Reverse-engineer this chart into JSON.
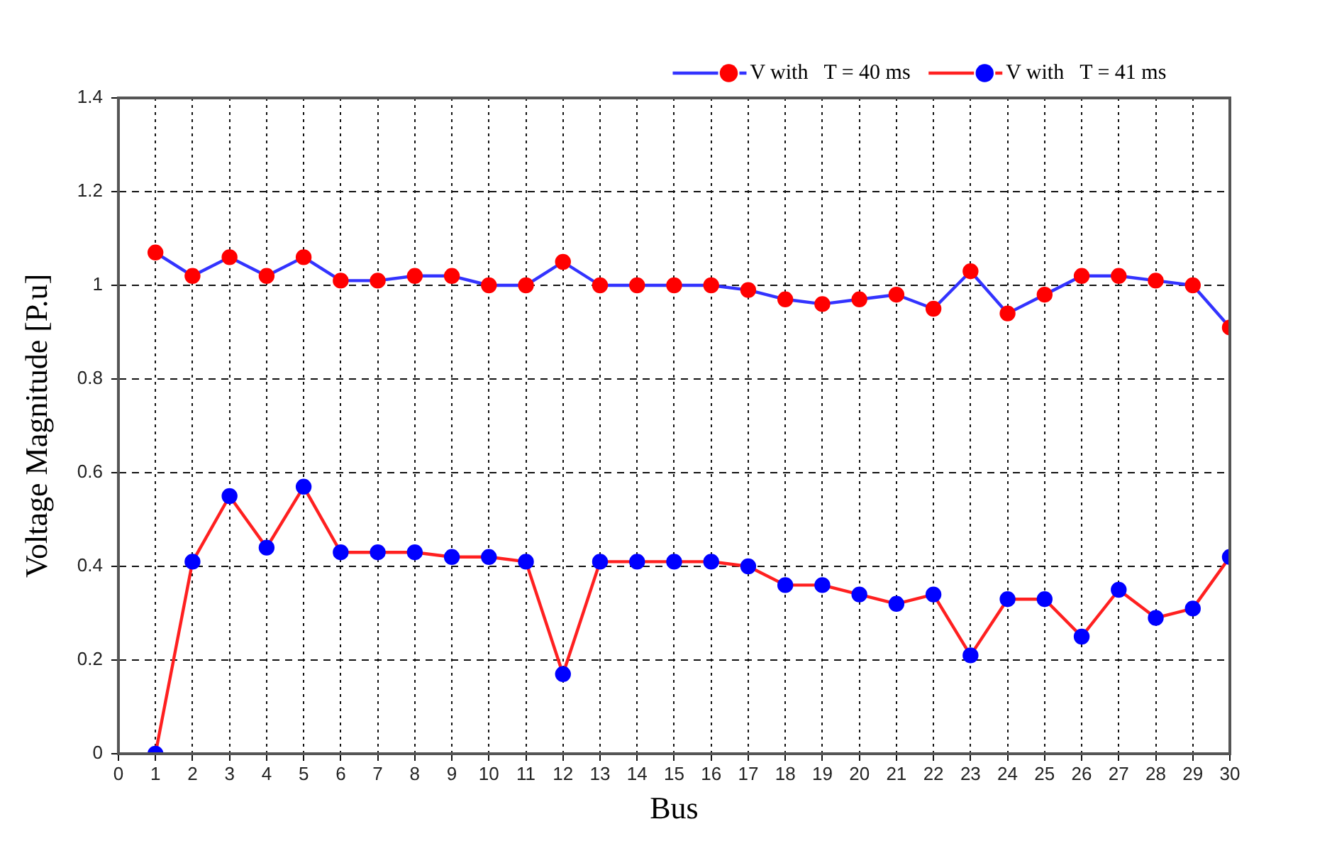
{
  "chart_data": {
    "type": "line",
    "xlabel": "Bus",
    "ylabel": "Voltage Magnitude [P.u]",
    "x": [
      1,
      2,
      3,
      4,
      5,
      6,
      7,
      8,
      9,
      10,
      11,
      12,
      13,
      14,
      15,
      16,
      17,
      18,
      19,
      20,
      21,
      22,
      23,
      24,
      25,
      26,
      27,
      28,
      29,
      30
    ],
    "xlim": [
      0,
      30
    ],
    "xticks": [
      0,
      1,
      2,
      3,
      4,
      5,
      6,
      7,
      8,
      9,
      10,
      11,
      12,
      13,
      14,
      15,
      16,
      17,
      18,
      19,
      20,
      21,
      22,
      23,
      24,
      25,
      26,
      27,
      28,
      29,
      30
    ],
    "ylim": [
      0,
      1.4
    ],
    "yticks": [
      0,
      0.2,
      0.4,
      0.6,
      0.8,
      1,
      1.2,
      1.4
    ],
    "grid": true,
    "legend": "top right",
    "marker": "circle",
    "line_style": "solid",
    "series": [
      {
        "name": "V with   T = 40 ms",
        "color": "#3333ff",
        "colors": [
          "#ff0000",
          "#ff0000",
          "#ff0000",
          "#ff0000",
          "#ff0000",
          "#ff0000",
          "#ff0000",
          "#ff0000",
          "#ff0000",
          "#ff0000",
          "#ff0000",
          "#ff0000",
          "#ff0000",
          "#ff0000",
          "#ff0000",
          "#ff0000",
          "#ff0000",
          "#ff0000",
          "#ff0000",
          "#ff0000",
          "#ff0000",
          "#ff0000",
          "#ff0000",
          "#ff0000",
          "#ff0000",
          "#ff0000",
          "#ff0000",
          "#ff0000",
          "#ff0000",
          "#ff0000"
        ],
        "values": [
          1.07,
          1.02,
          1.06,
          1.02,
          1.06,
          1.01,
          1.01,
          1.02,
          1.02,
          1.0,
          1.0,
          1.05,
          1.0,
          1.0,
          1.0,
          1.0,
          0.99,
          0.97,
          0.96,
          0.97,
          0.98,
          0.95,
          1.03,
          0.94,
          0.98,
          1.02,
          1.02,
          1.01,
          1.0,
          0.91
        ]
      },
      {
        "name": "V with   T = 41 ms",
        "color": "#ff2020",
        "colors": [
          "#0000ff",
          "#0000ff",
          "#0000ff",
          "#0000ff",
          "#0000ff",
          "#0000ff",
          "#0000ff",
          "#0000ff",
          "#0000ff",
          "#0000ff",
          "#0000ff",
          "#0000ff",
          "#0000ff",
          "#0000ff",
          "#0000ff",
          "#0000ff",
          "#0000ff",
          "#0000ff",
          "#0000ff",
          "#0000ff",
          "#0000ff",
          "#0000ff",
          "#0000ff",
          "#0000ff",
          "#0000ff",
          "#0000ff",
          "#0000ff",
          "#0000ff",
          "#0000ff",
          "#0000ff"
        ],
        "values": [
          0,
          0.41,
          0.55,
          0.44,
          0.57,
          0.43,
          0.43,
          0.43,
          0.42,
          0.42,
          0.41,
          0.17,
          0.41,
          0.41,
          0.41,
          0.41,
          0.4,
          0.36,
          0.36,
          0.34,
          0.32,
          0.34,
          0.21,
          0.33,
          0.33,
          0.25,
          0.35,
          0.29,
          0.31,
          0.42
        ]
      }
    ]
  }
}
